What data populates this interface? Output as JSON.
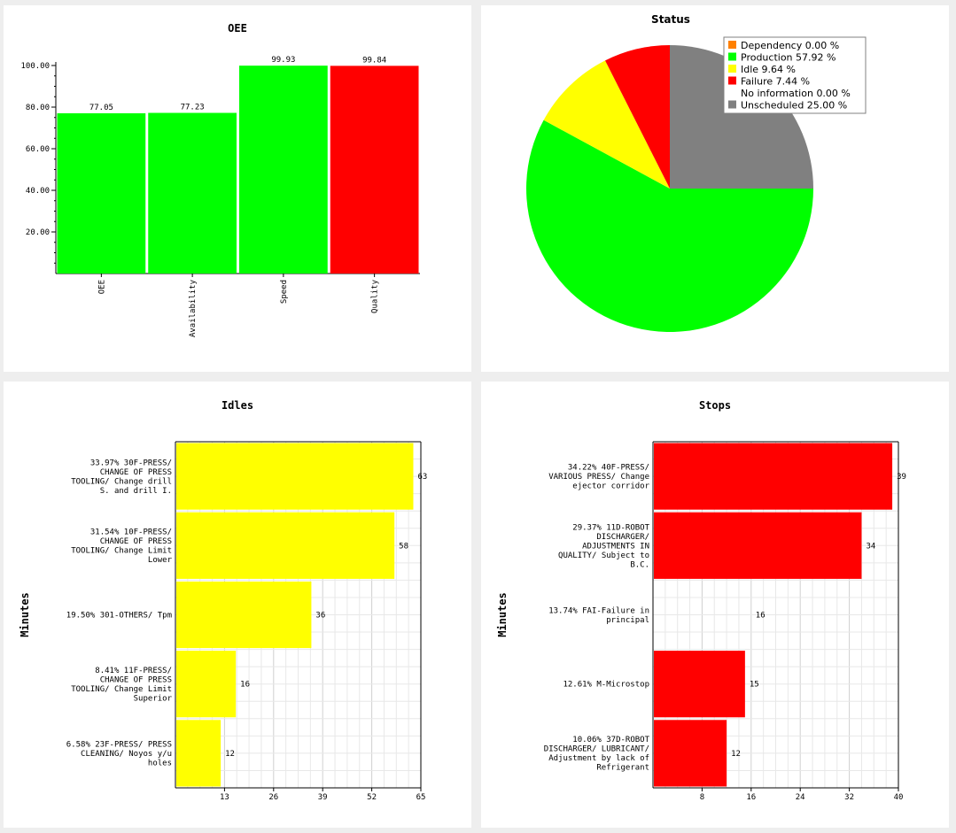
{
  "chart_data": [
    {
      "type": "bar",
      "title": "OEE",
      "categories": [
        "OEE",
        "Availability",
        "Speed",
        "Quality"
      ],
      "values": [
        77.05,
        77.23,
        99.93,
        99.84
      ],
      "value_labels": [
        "77.05",
        "77.23",
        "99.93",
        "99.84"
      ],
      "colors": [
        "#00ff00",
        "#00ff00",
        "#00ff00",
        "#ff0000"
      ],
      "ylim": [
        0,
        100
      ],
      "yticks": [
        "20.00",
        "40.00",
        "60.00",
        "80.00",
        "100.00"
      ],
      "ytick_values": [
        20,
        40,
        60,
        80,
        100
      ],
      "grid": false
    },
    {
      "type": "pie",
      "title": "Status",
      "legend_position": "top-right",
      "slices": [
        {
          "label": "Dependency",
          "value": 0.0,
          "text": "Dependency  0.00 %",
          "color": "#ff8000"
        },
        {
          "label": "Production",
          "value": 57.92,
          "text": "Production  57.92 %",
          "color": "#00ff00"
        },
        {
          "label": "Idle",
          "value": 9.64,
          "text": "Idle  9.64 %",
          "color": "#ffff00"
        },
        {
          "label": "Failure",
          "value": 7.44,
          "text": "Failure  7.44 %",
          "color": "#ff0000"
        },
        {
          "label": "No information",
          "value": 0.0,
          "text": "No information  0.00 %",
          "color": "#ffffff"
        },
        {
          "label": "Unscheduled",
          "value": 25.0,
          "text": "Unscheduled  25.00 %",
          "color": "#808080"
        }
      ]
    },
    {
      "type": "bar",
      "orientation": "horizontal",
      "title": "Idles",
      "ylabel": "Minutes",
      "color": "#ffff00",
      "xlim": [
        0,
        65
      ],
      "xticks": [
        13,
        26,
        39,
        52,
        65
      ],
      "grid": true,
      "categories": [
        [
          "33.97% 30F-PRESS/",
          "CHANGE OF PRESS",
          "TOOLING/ Change drill",
          "S. and drill I."
        ],
        [
          "31.54% 10F-PRESS/",
          "CHANGE OF PRESS",
          "TOOLING/ Change Limit",
          "Lower"
        ],
        [
          "19.50% 301-OTHERS/ Tpm"
        ],
        [
          "8.41% 11F-PRESS/",
          "CHANGE OF PRESS",
          "TOOLING/ Change Limit",
          "Superior"
        ],
        [
          "6.58% 23F-PRESS/ PRESS",
          "CLEANING/ Noyos y/u",
          "holes"
        ]
      ],
      "values": [
        63,
        58,
        36,
        16,
        12
      ]
    },
    {
      "type": "bar",
      "orientation": "horizontal",
      "title": "Stops",
      "ylabel": "Minutes",
      "color": "#ff0000",
      "xlim": [
        0,
        40
      ],
      "xticks": [
        8,
        16,
        24,
        32,
        40
      ],
      "grid": true,
      "categories": [
        [
          "34.22% 40F-PRESS/",
          "VARIOUS PRESS/ Change",
          "ejector corridor"
        ],
        [
          "29.37% 11D-ROBOT",
          "DISCHARGER/",
          "ADJUSTMENTS IN",
          "QUALITY/ Subject to",
          "B.C."
        ],
        [
          "13.74% FAI-Failure in",
          "principal"
        ],
        [
          "12.61% M-Microstop"
        ],
        [
          "10.06% 37D-ROBOT",
          "DISCHARGER/ LUBRICANT/",
          "Adjustment by lack of",
          "Refrigerant"
        ]
      ],
      "values": [
        39,
        34,
        16,
        15,
        12
      ],
      "bar_visible": [
        true,
        true,
        false,
        true,
        true
      ]
    }
  ]
}
